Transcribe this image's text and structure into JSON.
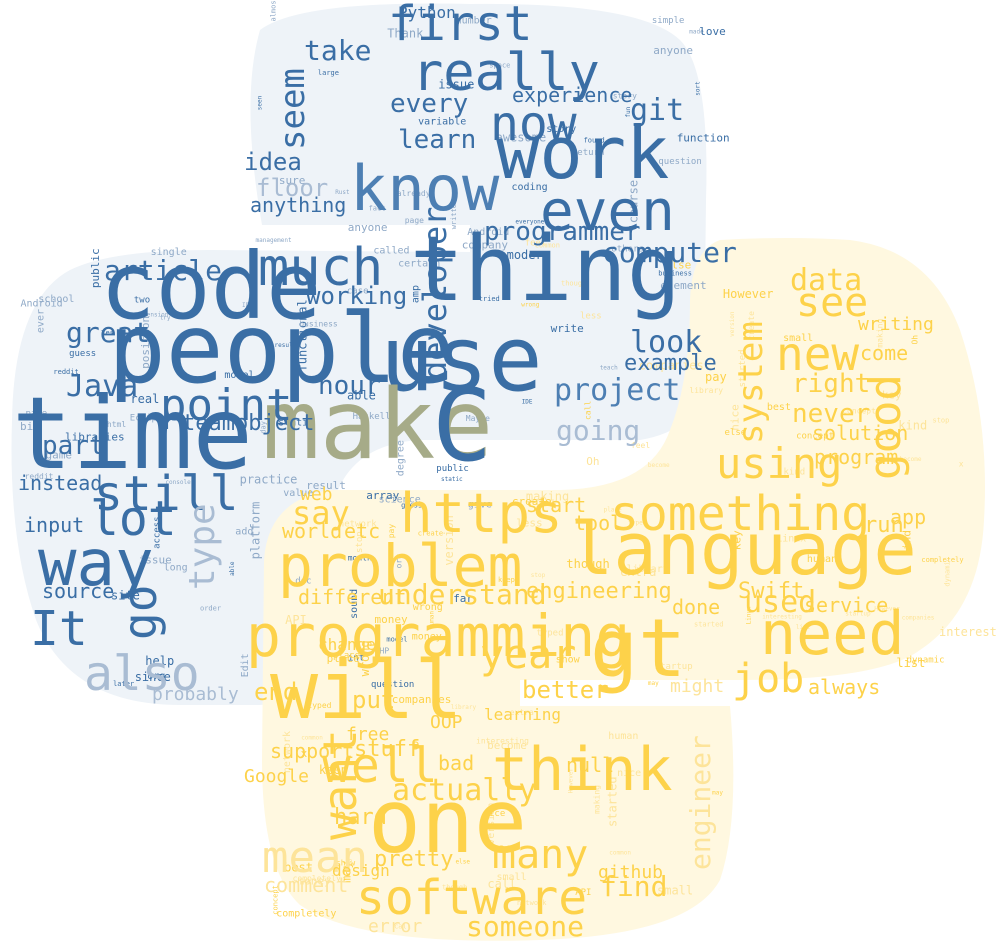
{
  "image": {
    "kind": "word-cloud",
    "shape": "python-logo",
    "background_color": "#ffffff"
  },
  "colors": {
    "blue_main": "#3a6ea5",
    "blue_mid": "#4d7fb3",
    "blue_light": "#a9bcd3",
    "yellow_main": "#fdd24a",
    "yellow_light": "#fde49a",
    "olive": "#a6ab88"
  },
  "words": [
    {
      "text": "code",
      "fill": "#3a6ea5",
      "font_size": 92,
      "weight": 400
    },
    {
      "text": "people",
      "fill": "#3a6ea5",
      "font_size": 96,
      "weight": 400
    },
    {
      "text": "time",
      "fill": "#3a6ea5",
      "font_size": 100,
      "weight": 400
    },
    {
      "text": "use",
      "fill": "#3a6ea5",
      "font_size": 90,
      "weight": 400
    },
    {
      "text": "thing",
      "fill": "#3a6ea5",
      "font_size": 90,
      "weight": 400
    },
    {
      "text": "make",
      "fill": "#a6ab88",
      "font_size": 96,
      "weight": 400
    },
    {
      "text": "C",
      "fill": "#3a6ea5",
      "font_size": 100,
      "weight": 400
    },
    {
      "text": "know",
      "fill": "#4d7fb3",
      "font_size": 62,
      "weight": 400
    },
    {
      "text": "work",
      "fill": "#3a6ea5",
      "font_size": 72,
      "weight": 400
    },
    {
      "text": "really",
      "fill": "#3a6ea5",
      "font_size": 52,
      "weight": 400
    },
    {
      "text": "first",
      "fill": "#3a6ea5",
      "font_size": 48,
      "weight": 400
    },
    {
      "text": "even",
      "fill": "#3a6ea5",
      "font_size": 56,
      "weight": 400
    },
    {
      "text": "now",
      "fill": "#3a6ea5",
      "font_size": 48,
      "weight": 400
    },
    {
      "text": "much",
      "fill": "#3a6ea5",
      "font_size": 52,
      "weight": 400
    },
    {
      "text": "way",
      "fill": "#3a6ea5",
      "font_size": 64,
      "weight": 400
    },
    {
      "text": "lot",
      "fill": "#3a6ea5",
      "font_size": 48,
      "weight": 400
    },
    {
      "text": "still",
      "fill": "#3a6ea5",
      "font_size": 48,
      "weight": 400
    },
    {
      "text": "point",
      "fill": "#3a6ea5",
      "font_size": 44,
      "weight": 400
    },
    {
      "text": "also",
      "fill": "#a9bcd3",
      "font_size": 48,
      "weight": 400
    },
    {
      "text": "go",
      "fill": "#3a6ea5",
      "font_size": 46,
      "weight": 400
    },
    {
      "text": "It",
      "fill": "#3a6ea5",
      "font_size": 48,
      "weight": 400
    },
    {
      "text": "type",
      "fill": "#a9bcd3",
      "font_size": 36,
      "weight": 400
    },
    {
      "text": "seem",
      "fill": "#3a6ea5",
      "font_size": 34,
      "weight": 400
    },
    {
      "text": "take",
      "fill": "#3a6ea5",
      "font_size": 28,
      "weight": 400
    },
    {
      "text": "every",
      "fill": "#3a6ea5",
      "font_size": 26,
      "weight": 400
    },
    {
      "text": "learn",
      "fill": "#3a6ea5",
      "font_size": 26,
      "weight": 400
    },
    {
      "text": "git",
      "fill": "#3a6ea5",
      "font_size": 30,
      "weight": 400
    },
    {
      "text": "experience",
      "fill": "#3a6ea5",
      "font_size": 20,
      "weight": 400
    },
    {
      "text": "programmer",
      "fill": "#3a6ea5",
      "font_size": 26,
      "weight": 400
    },
    {
      "text": "computer",
      "fill": "#3a6ea5",
      "font_size": 28,
      "weight": 400
    },
    {
      "text": "developer",
      "fill": "#3a6ea5",
      "font_size": 32,
      "weight": 400
    },
    {
      "text": "project",
      "fill": "#4d7fb3",
      "font_size": 30,
      "weight": 400
    },
    {
      "text": "look",
      "fill": "#3a6ea5",
      "font_size": 30,
      "weight": 400
    },
    {
      "text": "example",
      "fill": "#3a6ea5",
      "font_size": 22,
      "weight": 400
    },
    {
      "text": "going",
      "fill": "#a9bcd3",
      "font_size": 28,
      "weight": 400
    },
    {
      "text": "article",
      "fill": "#3a6ea5",
      "font_size": 28,
      "weight": 400
    },
    {
      "text": "great",
      "fill": "#3a6ea5",
      "font_size": 28,
      "weight": 400
    },
    {
      "text": "Java",
      "fill": "#3a6ea5",
      "font_size": 30,
      "weight": 400
    },
    {
      "text": "part",
      "fill": "#3a6ea5",
      "font_size": 26,
      "weight": 400
    },
    {
      "text": "working",
      "fill": "#3a6ea5",
      "font_size": 24,
      "weight": 400
    },
    {
      "text": "hour",
      "fill": "#3a6ea5",
      "font_size": 26,
      "weight": 400
    },
    {
      "text": "teamobject",
      "fill": "#3a6ea5",
      "font_size": 22,
      "weight": 400
    },
    {
      "text": "floor",
      "fill": "#a9bcd3",
      "font_size": 24,
      "weight": 400
    },
    {
      "text": "idea",
      "fill": "#3a6ea5",
      "font_size": 24,
      "weight": 400
    },
    {
      "text": "anything",
      "fill": "#3a6ea5",
      "font_size": 20,
      "weight": 400
    },
    {
      "text": "source",
      "fill": "#3a6ea5",
      "font_size": 20,
      "weight": 400
    },
    {
      "text": "input",
      "fill": "#3a6ea5",
      "font_size": 20,
      "weight": 400
    },
    {
      "text": "instead",
      "fill": "#3a6ea5",
      "font_size": 20,
      "weight": 400
    },
    {
      "text": "probably",
      "fill": "#a9bcd3",
      "font_size": 18,
      "weight": 400
    },
    {
      "text": "Python",
      "fill": "#3a6ea5",
      "font_size": 16,
      "weight": 400
    },
    {
      "text": "language",
      "fill": "#fdd24a",
      "font_size": 72,
      "weight": 400
    },
    {
      "text": "problem",
      "fill": "#fdd24a",
      "font_size": 58,
      "weight": 400
    },
    {
      "text": "programming",
      "fill": "#fdd24a",
      "font_size": 58,
      "weight": 400
    },
    {
      "text": "will",
      "fill": "#fdd24a",
      "font_size": 80,
      "weight": 400
    },
    {
      "text": "one",
      "fill": "#fdd24a",
      "font_size": 88,
      "weight": 400
    },
    {
      "text": "gt",
      "fill": "#fdd24a",
      "font_size": 80,
      "weight": 400
    },
    {
      "text": "need",
      "fill": "#fdd24a",
      "font_size": 60,
      "weight": 400
    },
    {
      "text": "think",
      "fill": "#fdd24a",
      "font_size": 60,
      "weight": 400
    },
    {
      "text": "https",
      "fill": "#fdd24a",
      "font_size": 54,
      "weight": 400
    },
    {
      "text": "something",
      "fill": "#fdd24a",
      "font_size": 48,
      "weight": 400
    },
    {
      "text": "software",
      "fill": "#fdd24a",
      "font_size": 48,
      "weight": 400
    },
    {
      "text": "many",
      "fill": "#fdd24a",
      "font_size": 40,
      "weight": 400
    },
    {
      "text": "new",
      "fill": "#fdd24a",
      "font_size": 46,
      "weight": 400
    },
    {
      "text": "good",
      "fill": "#fdd24a",
      "font_size": 44,
      "weight": 400
    },
    {
      "text": "using",
      "fill": "#fdd24a",
      "font_size": 42,
      "weight": 400
    },
    {
      "text": "see",
      "fill": "#fdd24a",
      "font_size": 40,
      "weight": 400
    },
    {
      "text": "system",
      "fill": "#fdd24a",
      "font_size": 34,
      "weight": 400
    },
    {
      "text": "well",
      "fill": "#fdd24a",
      "font_size": 48,
      "weight": 400
    },
    {
      "text": "want",
      "fill": "#fdd24a",
      "font_size": 46,
      "weight": 400
    },
    {
      "text": "mean",
      "fill": "#fde49a",
      "font_size": 44,
      "weight": 400
    },
    {
      "text": "year",
      "fill": "#fdd24a",
      "font_size": 40,
      "weight": 400
    },
    {
      "text": "job",
      "fill": "#fdd24a",
      "font_size": 40,
      "weight": 400
    },
    {
      "text": "used",
      "fill": "#fdd24a",
      "font_size": 30,
      "weight": 400
    },
    {
      "text": "engineer",
      "fill": "#fde49a",
      "font_size": 28,
      "weight": 400
    },
    {
      "text": "actually",
      "fill": "#fdd24a",
      "font_size": 30,
      "weight": 400
    },
    {
      "text": "understand",
      "fill": "#fdd24a",
      "font_size": 28,
      "weight": 400
    },
    {
      "text": "say",
      "fill": "#fdd24a",
      "font_size": 32,
      "weight": 400
    },
    {
      "text": "better",
      "fill": "#fdd24a",
      "font_size": 24,
      "weight": 400
    },
    {
      "text": "engineering",
      "fill": "#fdd24a",
      "font_size": 22,
      "weight": 400
    },
    {
      "text": "right",
      "fill": "#fdd24a",
      "font_size": 26,
      "weight": 400
    },
    {
      "text": "never",
      "fill": "#fdd24a",
      "font_size": 26,
      "weight": 400
    },
    {
      "text": "data",
      "fill": "#fdd24a",
      "font_size": 30,
      "weight": 400
    },
    {
      "text": "someone",
      "fill": "#fdd24a",
      "font_size": 28,
      "weight": 400
    },
    {
      "text": "find",
      "fill": "#fdd24a",
      "font_size": 28,
      "weight": 400
    },
    {
      "text": "pretty",
      "fill": "#fdd24a",
      "font_size": 22,
      "weight": 400
    },
    {
      "text": "Swift",
      "fill": "#fdd24a",
      "font_size": 22,
      "weight": 400
    },
    {
      "text": "done",
      "fill": "#fdd24a",
      "font_size": 20,
      "weight": 400
    },
    {
      "text": "always",
      "fill": "#fdd24a",
      "font_size": 20,
      "weight": 400
    },
    {
      "text": "service",
      "fill": "#fdd24a",
      "font_size": 20,
      "weight": 400
    },
    {
      "text": "stuff",
      "fill": "#fdd24a",
      "font_size": 22,
      "weight": 400
    },
    {
      "text": "support",
      "fill": "#fdd24a",
      "font_size": 20,
      "weight": 400
    },
    {
      "text": "put",
      "fill": "#fdd24a",
      "font_size": 24,
      "weight": 400
    },
    {
      "text": "different",
      "fill": "#fdd24a",
      "font_size": 20,
      "weight": 400
    },
    {
      "text": "tool",
      "fill": "#fdd24a",
      "font_size": 20,
      "weight": 400
    },
    {
      "text": "start",
      "fill": "#fdd24a",
      "font_size": 20,
      "weight": 400
    },
    {
      "text": "web",
      "fill": "#fdd24a",
      "font_size": 18,
      "weight": 400
    },
    {
      "text": "world",
      "fill": "#fdd24a",
      "font_size": 20,
      "weight": 400
    },
    {
      "text": "etc",
      "fill": "#fdd24a",
      "font_size": 20,
      "weight": 400
    },
    {
      "text": "end",
      "fill": "#fdd24a",
      "font_size": 24,
      "weight": 400
    },
    {
      "text": "hard",
      "fill": "#fdd24a",
      "font_size": 22,
      "weight": 400
    },
    {
      "text": "design",
      "fill": "#fdd24a",
      "font_size": 16,
      "weight": 400
    },
    {
      "text": "error",
      "fill": "#fde49a",
      "font_size": 18,
      "weight": 400
    },
    {
      "text": "github",
      "fill": "#fdd24a",
      "font_size": 18,
      "weight": 400
    },
    {
      "text": "run",
      "fill": "#fdd24a",
      "font_size": 22,
      "weight": 400
    },
    {
      "text": "app",
      "fill": "#fdd24a",
      "font_size": 20,
      "weight": 400
    },
    {
      "text": "program",
      "fill": "#fdd24a",
      "font_size": 20,
      "weight": 400
    },
    {
      "text": "solution",
      "fill": "#fdd24a",
      "font_size": 20,
      "weight": 400
    },
    {
      "text": "come",
      "fill": "#fdd24a",
      "font_size": 20,
      "weight": 400
    },
    {
      "text": "writing",
      "fill": "#fdd24a",
      "font_size": 18,
      "weight": 400
    },
    {
      "text": "OOP",
      "fill": "#fdd24a",
      "font_size": 18,
      "weight": 400
    },
    {
      "text": "null",
      "fill": "#fdd24a",
      "font_size": 20,
      "weight": 400
    },
    {
      "text": "bad",
      "fill": "#fdd24a",
      "font_size": 20,
      "weight": 400
    },
    {
      "text": "comment",
      "fill": "#fde49a",
      "font_size": 20,
      "weight": 400
    },
    {
      "text": "Google",
      "fill": "#fdd24a",
      "font_size": 18,
      "weight": 400
    },
    {
      "text": "learning",
      "fill": "#fdd24a",
      "font_size": 16,
      "weight": 400
    },
    {
      "text": "change",
      "fill": "#fdd24a",
      "font_size": 16,
      "weight": 400
    },
    {
      "text": "free",
      "fill": "#fdd24a",
      "font_size": 18,
      "weight": 400
    },
    {
      "text": "might",
      "fill": "#fde49a",
      "font_size": 18,
      "weight": 400
    }
  ]
}
